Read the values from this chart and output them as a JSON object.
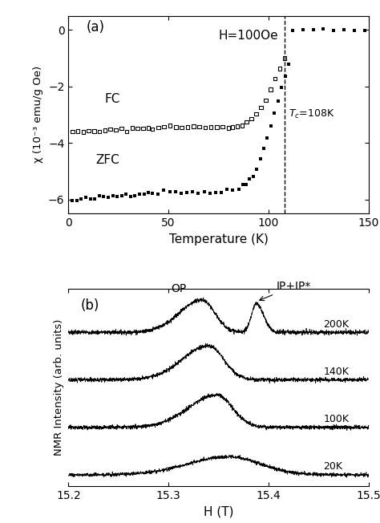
{
  "panel_a": {
    "title_label": "(a)",
    "annotation": "H=100Oe",
    "tc_value": 108,
    "xlabel": "Temperature (K)",
    "ylabel": "χ (10⁻³ emu/g Oe)",
    "xlim": [
      0,
      150
    ],
    "ylim": [
      -6.5,
      0.5
    ],
    "yticks": [
      0,
      -2,
      -4,
      -6
    ],
    "xticks": [
      0,
      50,
      100,
      150
    ],
    "fc_label": "FC",
    "zfc_label": "ZFC",
    "tc_label": "Tₑ=108K"
  },
  "panel_b": {
    "title_label": "(b)",
    "op_label": "OP",
    "ip_label": "IP+IP*",
    "xlabel": "H (T)",
    "ylabel": "NMR Intensity (arb. units)",
    "xlim": [
      15.2,
      15.5
    ],
    "xticks": [
      15.2,
      15.3,
      15.4,
      15.5
    ],
    "temperatures": [
      "200K",
      "140K",
      "100K",
      "20K"
    ],
    "offsets": [
      3.0,
      2.0,
      1.0,
      0.0
    ],
    "noise_levels": [
      0.022,
      0.02,
      0.02,
      0.018
    ]
  }
}
